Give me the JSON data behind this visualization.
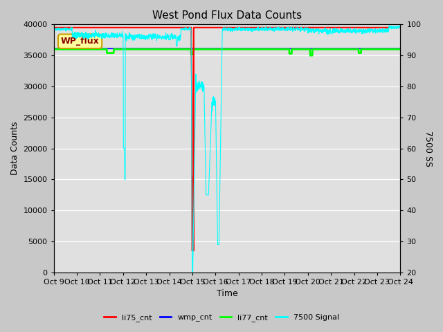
{
  "title": "West Pond Flux Data Counts",
  "xlabel": "Time",
  "ylabel_left": "Data Counts",
  "ylabel_right": "7500 SS",
  "ylim_left": [
    0,
    40000
  ],
  "ylim_right": [
    20,
    100
  ],
  "fig_bg_color": "#c8c8c8",
  "plot_bg_color": "#e0e0e0",
  "x_tick_labels": [
    "Oct 9",
    "Oct 10",
    "Oct 11",
    "Oct 12",
    "Oct 13",
    "Oct 14",
    "Oct 15",
    "Oct 16",
    "Oct 17",
    "Oct 18",
    "Oct 19",
    "Oct 20",
    "Oct 21",
    "Oct 22",
    "Oct 23",
    "Oct 24"
  ],
  "yticks_left": [
    0,
    5000,
    10000,
    15000,
    20000,
    25000,
    30000,
    35000,
    40000
  ],
  "yticks_right": [
    20,
    30,
    40,
    50,
    60,
    70,
    80,
    90,
    100
  ],
  "legend_labels": [
    "li75_cnt",
    "wmp_cnt",
    "li77_cnt",
    "7500 Signal"
  ],
  "legend_colors": [
    "red",
    "blue",
    "lime",
    "cyan"
  ],
  "wp_flux_box_color": "#ffffa0",
  "wp_flux_text_color": "darkred",
  "wp_flux_edge_color": "#c8a000"
}
